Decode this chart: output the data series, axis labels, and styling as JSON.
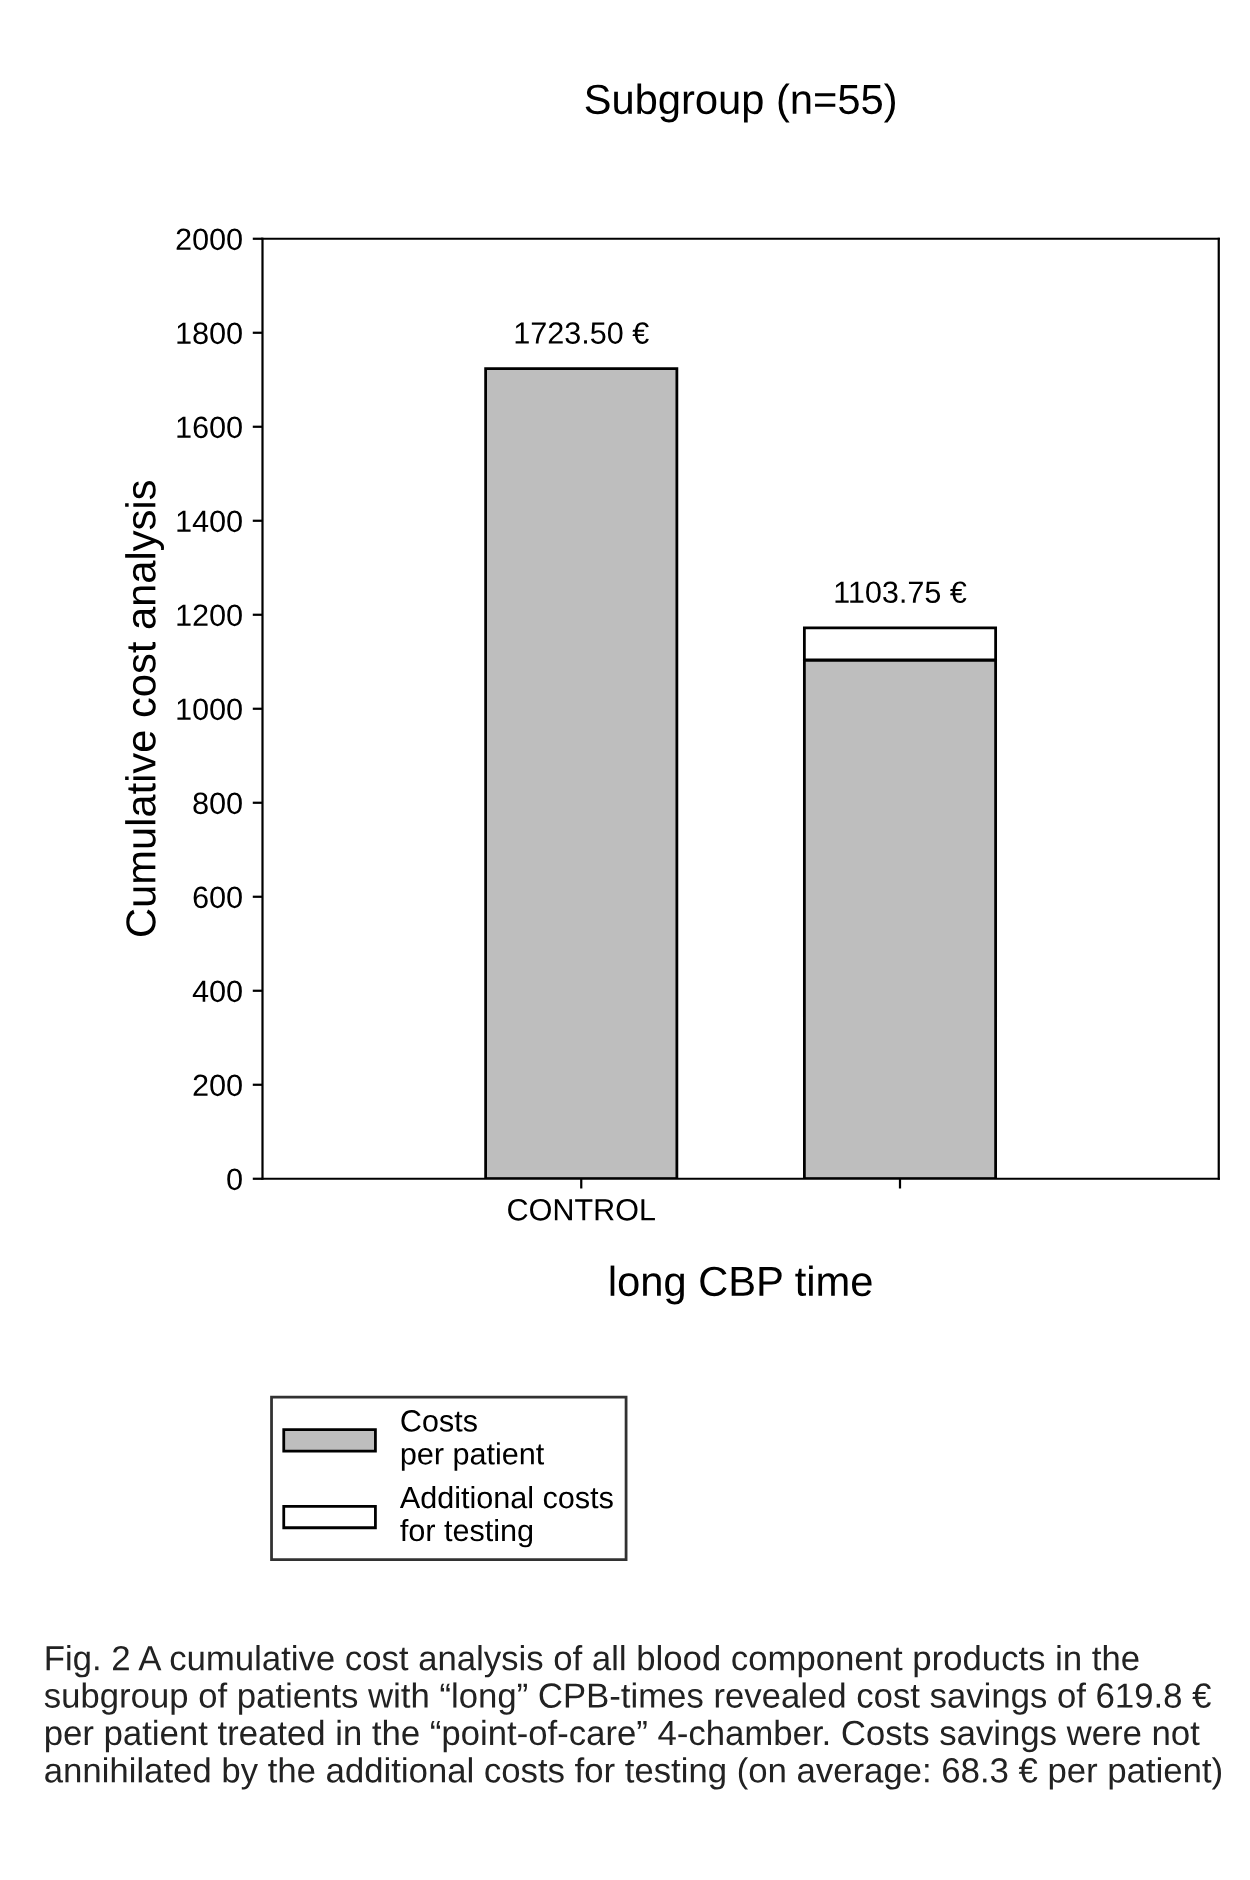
{
  "chart_data": {
    "type": "bar",
    "title": "Subgroup (n=55)",
    "xlabel": "long CBP time",
    "ylabel": "Cumulative cost analysis",
    "categories": [
      "CONTROL",
      null
    ],
    "stacked": true,
    "series": [
      {
        "name": "Costs\nper patient",
        "color": "#bebebe",
        "values": [
          1723.5,
          1103.75
        ],
        "value_labels": [
          "1723.50 €",
          "1103.75 €"
        ]
      },
      {
        "name": "Additional costs\nfor testing",
        "color": "#ffffff",
        "values": [
          null,
          68.3
        ]
      }
    ],
    "ylim": [
      0,
      2000
    ],
    "yticks": [
      0,
      200,
      400,
      600,
      800,
      1000,
      1200,
      1400,
      1600,
      1800,
      2000
    ],
    "grid": false,
    "legend": "bottom left",
    "annotations": [
      "Fig. 2 A cumulative cost analysis of all blood component products in the subgroup of patients with “long” CPB-times revealed cost savings of 619.8 € per patient treated in the “point-of-care” 4-chamber. Costs savings were not annihilated by the additional costs for testing (on average: 68.3 € per patient)"
    ]
  }
}
